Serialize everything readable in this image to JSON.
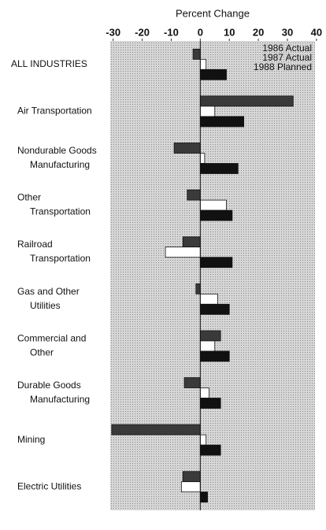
{
  "chart_data": {
    "type": "bar",
    "orientation": "horizontal",
    "xlabel": "Percent Change",
    "categories": [
      "ALL INDUSTRIES",
      "Air Transportation",
      "Nondurable Goods\nManufacturing",
      "Other\nTransportation",
      "Railroad\nTransportation",
      "Gas and Other\nUtilities",
      "Commercial and\nOther",
      "Durable Goods\nManufacturing",
      "Mining",
      "Electric Utilities"
    ],
    "series": [
      {
        "name": "1986 Actual",
        "color": "#3a3a3a",
        "values": [
          -2.5,
          32,
          -9,
          -4.5,
          -6,
          -1.5,
          7,
          -5.5,
          -30.5,
          -6
        ]
      },
      {
        "name": "1987 Actual",
        "color": "#ffffff",
        "values": [
          2,
          5,
          1.5,
          9,
          -12,
          6,
          5,
          3,
          2,
          -6.5
        ]
      },
      {
        "name": "1988 Planned",
        "color": "#111111",
        "values": [
          9,
          15,
          13,
          11,
          11,
          10,
          10,
          7,
          7,
          2.5
        ]
      }
    ],
    "xlim": [
      -31,
      39.5
    ],
    "xticks": [
      -30,
      -20,
      -10,
      0,
      10,
      20,
      30,
      40
    ],
    "legend": "upper right"
  }
}
